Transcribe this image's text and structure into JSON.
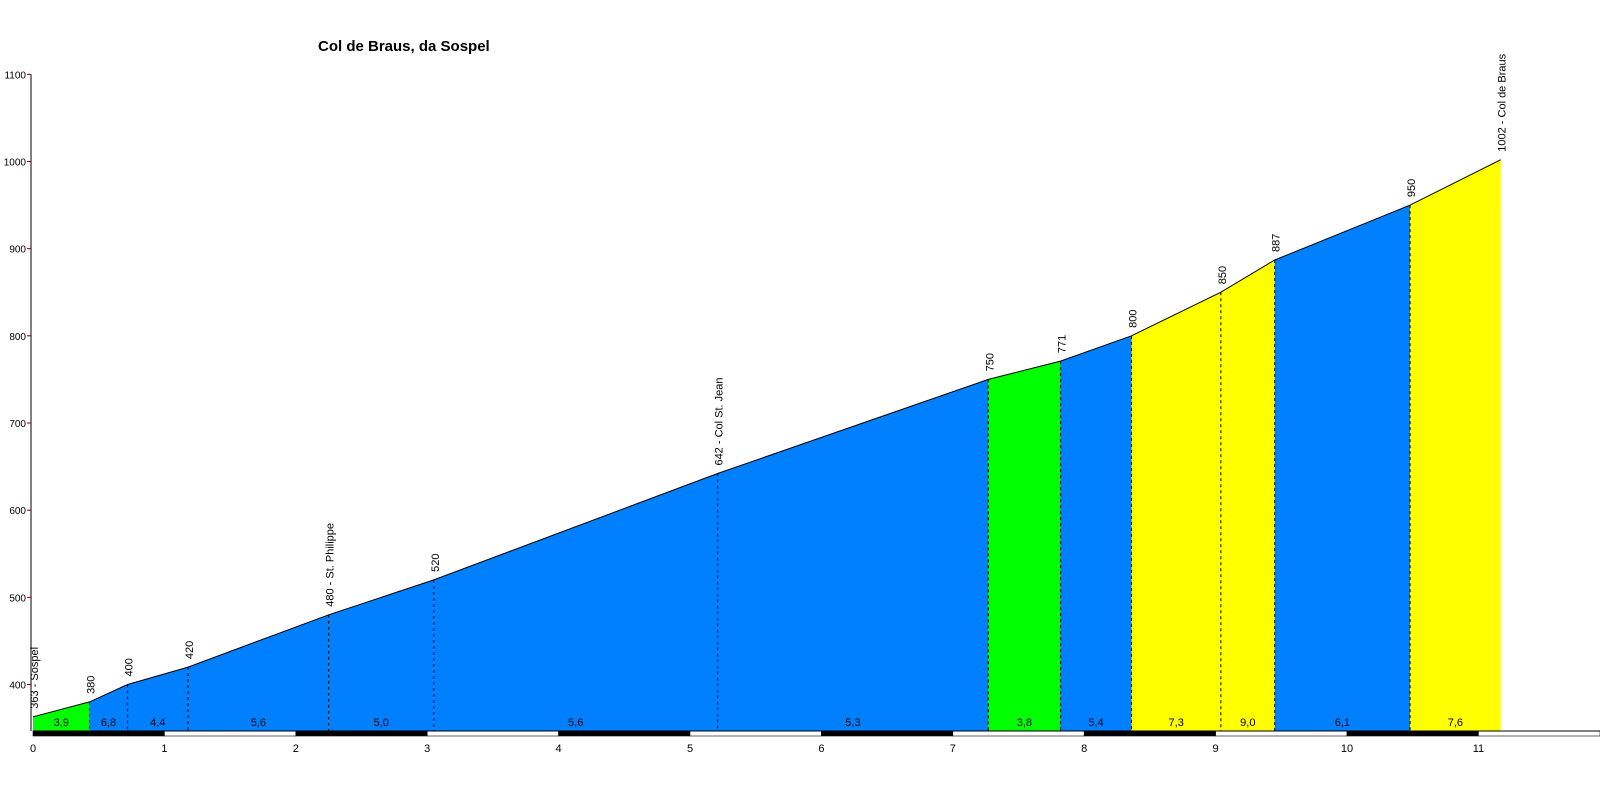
{
  "chart_data": {
    "type": "area",
    "title": "Col de Braus, da Sospel",
    "xlabel": "",
    "ylabel": "",
    "xlim": [
      0,
      12
    ],
    "ylim": [
      340,
      1100
    ],
    "x_ticks": [
      "0",
      "1",
      "2",
      "3",
      "4",
      "5",
      "6",
      "7",
      "8",
      "9",
      "10",
      "11"
    ],
    "y_ticks": [
      "400",
      "500",
      "600",
      "700",
      "800",
      "900",
      "1000",
      "1100"
    ],
    "grid": false,
    "legend": "none",
    "points": [
      {
        "x": 0.0,
        "y": 363,
        "label": "363 - Sospel"
      },
      {
        "x": 0.43,
        "y": 380,
        "label": "380"
      },
      {
        "x": 0.72,
        "y": 400,
        "label": "400"
      },
      {
        "x": 1.18,
        "y": 420,
        "label": "420"
      },
      {
        "x": 2.25,
        "y": 480,
        "label": "480 - St. Philippe"
      },
      {
        "x": 3.05,
        "y": 520,
        "label": "520"
      },
      {
        "x": 5.21,
        "y": 642,
        "label": "642 - Col St. Jean"
      },
      {
        "x": 7.27,
        "y": 750,
        "label": "750"
      },
      {
        "x": 7.82,
        "y": 771,
        "label": "771"
      },
      {
        "x": 8.36,
        "y": 800,
        "label": "800"
      },
      {
        "x": 9.04,
        "y": 850,
        "label": "850"
      },
      {
        "x": 9.45,
        "y": 887,
        "label": "887"
      },
      {
        "x": 10.48,
        "y": 950,
        "label": "950"
      },
      {
        "x": 11.17,
        "y": 1002,
        "label": "1002 - Col de Braus"
      }
    ],
    "segments": [
      {
        "from": 0.0,
        "to": 0.43,
        "gradient": "3,9",
        "color": "#00ff00"
      },
      {
        "from": 0.43,
        "to": 0.72,
        "gradient": "6,8",
        "color": "#0080ff"
      },
      {
        "from": 0.72,
        "to": 1.18,
        "gradient": "4,4",
        "color": "#0080ff"
      },
      {
        "from": 1.18,
        "to": 2.25,
        "gradient": "5,6",
        "color": "#0080ff"
      },
      {
        "from": 2.25,
        "to": 3.05,
        "gradient": "5,0",
        "color": "#0080ff"
      },
      {
        "from": 3.05,
        "to": 5.21,
        "gradient": "5,6",
        "color": "#0080ff"
      },
      {
        "from": 5.21,
        "to": 7.27,
        "gradient": "5,3",
        "color": "#0080ff"
      },
      {
        "from": 7.27,
        "to": 7.82,
        "gradient": "3,8",
        "color": "#00ff00"
      },
      {
        "from": 7.82,
        "to": 8.36,
        "gradient": "5,4",
        "color": "#0080ff"
      },
      {
        "from": 8.36,
        "to": 9.04,
        "gradient": "7,3",
        "color": "#ffff00"
      },
      {
        "from": 9.04,
        "to": 9.45,
        "gradient": "9,0",
        "color": "#ffff00"
      },
      {
        "from": 9.45,
        "to": 10.48,
        "gradient": "6,1",
        "color": "#0080ff"
      },
      {
        "from": 10.48,
        "to": 11.17,
        "gradient": "7,6",
        "color": "#ffff00"
      }
    ]
  }
}
